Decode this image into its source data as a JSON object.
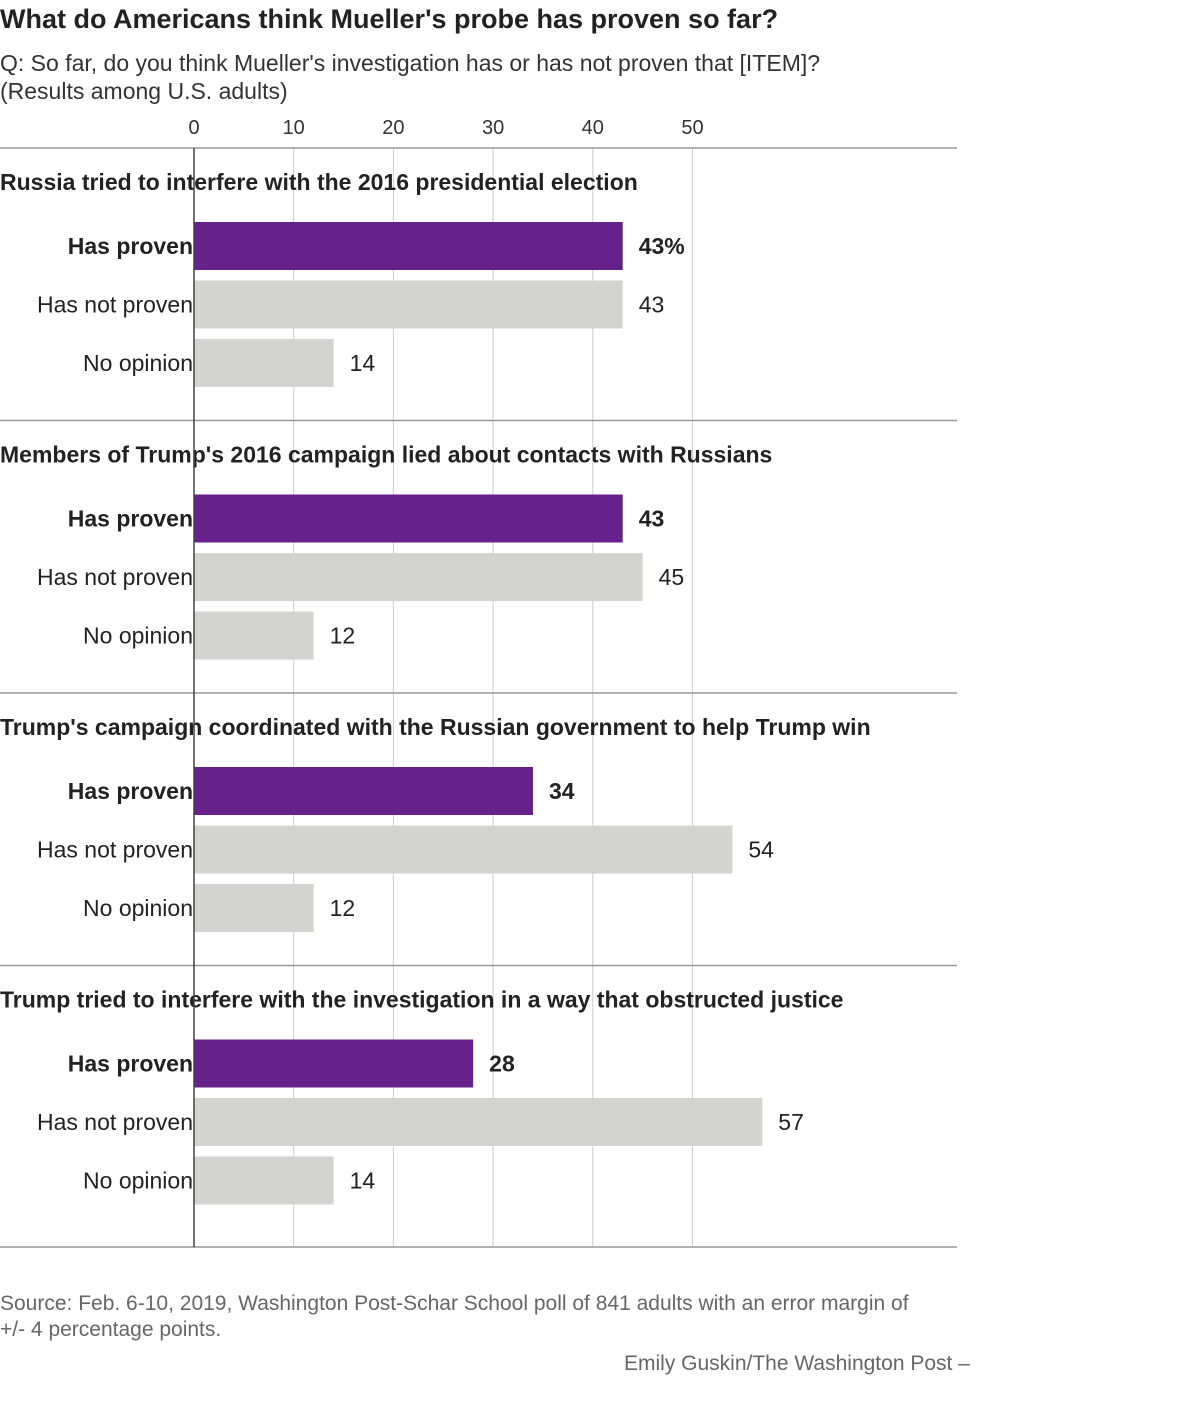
{
  "header": {
    "title": "What do Americans think Mueller's probe has proven so far?",
    "subtitle_line1": "Q: So far, do you think Mueller's investigation has or has not proven that [ITEM]?",
    "subtitle_line2": "(Results among U.S. adults)"
  },
  "footer": {
    "source_line1": "Source: Feb. 6-10, 2019, Washington Post-Schar School poll of 841 adults with an error margin of",
    "source_line2": "+/- 4 percentage points.",
    "credit": "Emily Guskin/The Washington Post  –"
  },
  "chart_data": {
    "type": "bar",
    "orientation": "horizontal",
    "x_ticks": [
      0,
      10,
      20,
      30,
      40,
      50
    ],
    "xlim": [
      0,
      57
    ],
    "grid": true,
    "categories": [
      "Has proven",
      "Has not proven",
      "No opinion"
    ],
    "colors": {
      "Has proven": "#66218a",
      "Has not proven": "#d3d3d0",
      "No opinion": "#d3d3d0"
    },
    "panels": [
      {
        "title": "Russia tried to interfere with the 2016 presidential election",
        "values": [
          43,
          43,
          14
        ],
        "value_labels": [
          "43%",
          "43",
          "14"
        ]
      },
      {
        "title": "Members of Trump's 2016 campaign lied about contacts with Russians",
        "values": [
          43,
          45,
          12
        ],
        "value_labels": [
          "43",
          "45",
          "12"
        ]
      },
      {
        "title": "Trump's campaign coordinated with the Russian government to help Trump win",
        "values": [
          34,
          54,
          12
        ],
        "value_labels": [
          "34",
          "54",
          "12"
        ]
      },
      {
        "title": "Trump tried to interfere with the investigation in a way that obstructed justice",
        "values": [
          28,
          57,
          14
        ],
        "value_labels": [
          "28",
          "57",
          "14"
        ]
      }
    ]
  }
}
